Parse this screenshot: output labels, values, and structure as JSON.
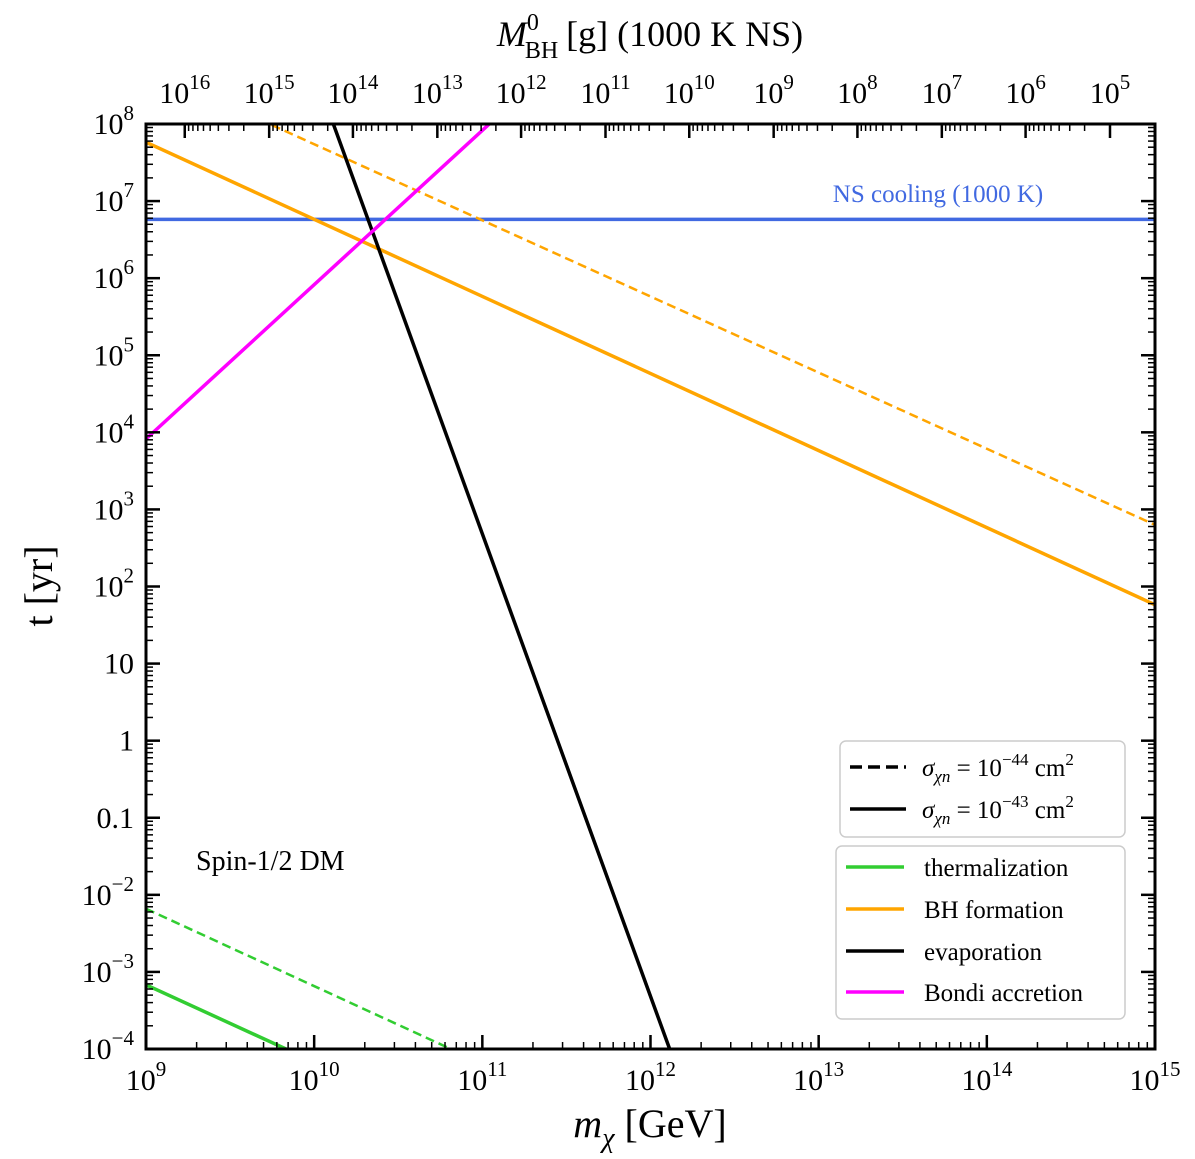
{
  "chart_data": {
    "type": "line",
    "title": "",
    "xscale": "log",
    "yscale": "log",
    "xlim": [
      1000000000.0,
      1000000000000000.0
    ],
    "ylim": [
      0.0001,
      100000000.0
    ],
    "xlabel_main": "m",
    "xlabel_sub": "χ",
    "xlabel_unit": "[GeV]",
    "ylabel": "t [yr]",
    "top_axis": {
      "label_main": "M",
      "label_sup": "0",
      "label_sub": "BH",
      "label_rest": "[g] (1000 K NS)",
      "ticks": [
        {
          "exp": "16",
          "x_gev": 1700000000.0
        },
        {
          "exp": "15",
          "x_gev": 5400000000.0
        },
        {
          "exp": "14",
          "x_gev": 17000000000.0
        },
        {
          "exp": "13",
          "x_gev": 54000000000.0
        },
        {
          "exp": "12",
          "x_gev": 170000000000.0
        },
        {
          "exp": "11",
          "x_gev": 540000000000.0
        },
        {
          "exp": "10",
          "x_gev": 1700000000000.0
        },
        {
          "exp": "9",
          "x_gev": 5400000000000.0
        },
        {
          "exp": "8",
          "x_gev": 17000000000000.0
        },
        {
          "exp": "7",
          "x_gev": 54000000000000.0
        },
        {
          "exp": "6",
          "x_gev": 170000000000000.0
        },
        {
          "exp": "5",
          "x_gev": 540000000000000.0
        }
      ]
    },
    "x_ticks": [
      {
        "base": "10",
        "exp": "9",
        "value": 1000000000.0
      },
      {
        "base": "10",
        "exp": "10",
        "value": 10000000000.0
      },
      {
        "base": "10",
        "exp": "11",
        "value": 100000000000.0
      },
      {
        "base": "10",
        "exp": "12",
        "value": 1000000000000.0
      },
      {
        "base": "10",
        "exp": "13",
        "value": 10000000000000.0
      },
      {
        "base": "10",
        "exp": "14",
        "value": 100000000000000.0
      },
      {
        "base": "10",
        "exp": "15",
        "value": 1000000000000000.0
      }
    ],
    "y_ticks": [
      {
        "base": "10",
        "exp": "8",
        "value": 100000000.0
      },
      {
        "base": "10",
        "exp": "7",
        "value": 10000000.0
      },
      {
        "base": "10",
        "exp": "6",
        "value": 1000000.0
      },
      {
        "base": "10",
        "exp": "5",
        "value": 100000.0
      },
      {
        "base": "10",
        "exp": "4",
        "value": 10000.0
      },
      {
        "base": "10",
        "exp": "3",
        "value": 1000.0
      },
      {
        "base": "10",
        "exp": "2",
        "value": 100.0
      },
      {
        "base": "10",
        "exp": "",
        "value": 10
      },
      {
        "base": "1",
        "exp": "",
        "value": 1
      },
      {
        "base": "0.1",
        "exp": "",
        "value": 0.1
      },
      {
        "base": "10",
        "exp": "−2",
        "value": 0.01
      },
      {
        "base": "10",
        "exp": "−3",
        "value": 0.001
      },
      {
        "base": "10",
        "exp": "−4",
        "value": 0.0001
      }
    ],
    "series": [
      {
        "name": "NS cooling",
        "color": "#4169e1",
        "style": "solid",
        "x": [
          1000000000.0,
          1000000000000000.0
        ],
        "y": [
          5800000.0,
          5800000.0
        ]
      },
      {
        "name": "BH formation (σ = 1e-43)",
        "color": "#ffa500",
        "style": "solid",
        "x": [
          1000000000.0,
          1000000000000000.0
        ],
        "y": [
          58000000.0,
          58
        ]
      },
      {
        "name": "BH formation (σ = 1e-44)",
        "color": "#ffa500",
        "style": "dashed",
        "x": [
          5600000000.0,
          1000000000000000.0
        ],
        "y": [
          97000000.0,
          630
        ]
      },
      {
        "name": "evaporation",
        "color": "#000000",
        "style": "solid",
        "x": [
          13000000000.0,
          1300000000000.0
        ],
        "y": [
          100000000.0,
          0.0001
        ]
      },
      {
        "name": "Bondi accretion",
        "color": "#ff00ff",
        "style": "solid",
        "x": [
          1000000000.0,
          110000000000.0
        ],
        "y": [
          8200,
          100000000.0
        ]
      },
      {
        "name": "thermalization (σ = 1e-43)",
        "color": "#32cd32",
        "style": "solid",
        "x": [
          1000000000.0,
          6800000000.0
        ],
        "y": [
          0.00068,
          0.0001
        ]
      },
      {
        "name": "thermalization (σ = 1e-44)",
        "color": "#32cd32",
        "style": "dashed",
        "x": [
          1000000000.0,
          65000000000.0
        ],
        "y": [
          0.0066,
          0.0001
        ]
      }
    ],
    "annotations": {
      "ns_cooling": "NS cooling (1000 K)",
      "spin": "Spin-1/2 DM"
    },
    "legend_style": {
      "position": "lower-right",
      "entries": [
        {
          "style": "dashed",
          "color": "#000000",
          "sym": "σ",
          "sub": "χn",
          "mid": " = 10",
          "exp": "−44",
          "unit": " cm",
          "unit_exp": "2"
        },
        {
          "style": "solid",
          "color": "#000000",
          "sym": "σ",
          "sub": "χn",
          "mid": " = 10",
          "exp": "−43",
          "unit": " cm",
          "unit_exp": "2"
        }
      ]
    },
    "legend_process": {
      "position": "lower-right",
      "entries": [
        {
          "label": "thermalization",
          "color": "#32cd32"
        },
        {
          "label": "BH formation",
          "color": "#ffa500"
        },
        {
          "label": "evaporation",
          "color": "#000000"
        },
        {
          "label": "Bondi accretion",
          "color": "#ff00ff"
        }
      ]
    }
  }
}
